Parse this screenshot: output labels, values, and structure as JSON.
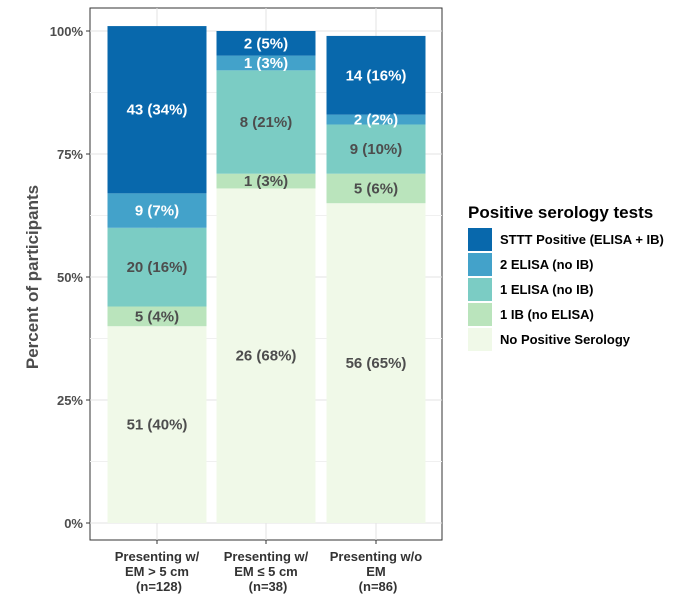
{
  "chart_data": {
    "type": "bar",
    "stacked": true,
    "ylabel": "Percent of participants",
    "xlabel": "",
    "ylim": [
      0,
      100
    ],
    "yticks": [
      "0%",
      "25%",
      "50%",
      "75%",
      "100%"
    ],
    "grid": true,
    "legend_position": "right",
    "legend_title": "Positive serology tests",
    "categories": [
      [
        "Presenting w/",
        "EM > 5 cm",
        "(n=128)"
      ],
      [
        "Presenting w/",
        "EM ≤ 5 cm",
        "(n=38)"
      ],
      [
        "Presenting w/o",
        "EM",
        "(n=86)"
      ]
    ],
    "series": [
      {
        "name": "No Positive Serology",
        "color": "#f0f9e8",
        "label_color": "#4d4d4d",
        "values": [
          40,
          68,
          65
        ],
        "labels": [
          "51 (40%)",
          "26 (68%)",
          "56 (65%)"
        ]
      },
      {
        "name": "1 IB (no ELISA)",
        "color": "#bae4bc",
        "label_color": "#4d4d4d",
        "values": [
          4,
          3,
          6
        ],
        "labels": [
          "5 (4%)",
          "1 (3%)",
          "5 (6%)"
        ]
      },
      {
        "name": "1 ELISA (no IB)",
        "color": "#7bccc4",
        "label_color": "#4d4d4d",
        "values": [
          16,
          21,
          10
        ],
        "labels": [
          "20 (16%)",
          "8 (21%)",
          "9 (10%)"
        ]
      },
      {
        "name": "2 ELISA (no IB)",
        "color": "#43a2ca",
        "label_color": "#ffffff",
        "values": [
          7,
          3,
          2
        ],
        "labels": [
          "9 (7%)",
          "1 (3%)",
          "2 (2%)"
        ]
      },
      {
        "name": "STTT Positive (ELISA + IB)",
        "color": "#0868ac",
        "label_color": "#ffffff",
        "values": [
          34,
          5,
          16
        ],
        "labels": [
          "43 (34%)",
          "2 (5%)",
          "14 (16%)"
        ]
      }
    ]
  }
}
